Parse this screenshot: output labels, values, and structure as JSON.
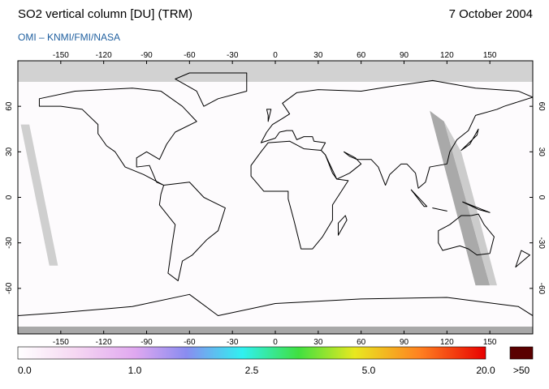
{
  "header": {
    "title": "SO2 vertical column [DU] (TRM)",
    "date": "7 October 2004",
    "source": "OMI  –  KNMI/FMI/NASA"
  },
  "map": {
    "lon_range": [
      -180,
      180
    ],
    "lat_range": [
      -90,
      90
    ],
    "lon_ticks": [
      -150,
      -120,
      -90,
      -60,
      -30,
      0,
      30,
      60,
      90,
      120,
      150
    ],
    "lat_ticks": [
      -60,
      -30,
      0,
      30,
      60
    ]
  },
  "colorbar": {
    "labels": [
      "0.0",
      "1.0",
      "2.5",
      "5.0",
      "20.0"
    ],
    "overflow_label": ">50"
  }
}
